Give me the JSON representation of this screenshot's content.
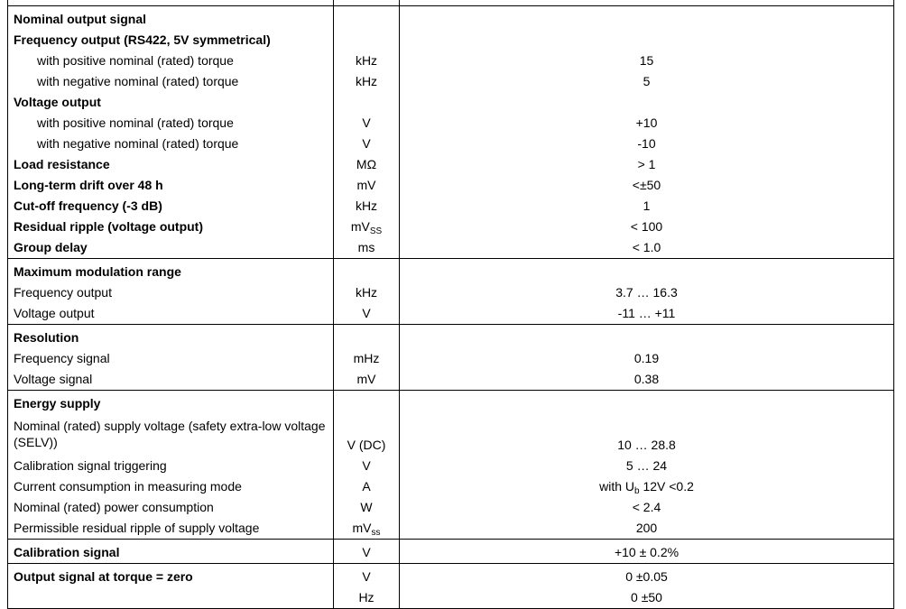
{
  "sections": [
    {
      "rows": [
        {
          "label": "Nominal output signal",
          "style": "bold",
          "unit": "",
          "value": ""
        },
        {
          "label": "Frequency output (RS422, 5V symmetrical)",
          "style": "bold",
          "unit": "",
          "value": ""
        },
        {
          "label": "with positive nominal (rated) torque",
          "style": "indent",
          "unit": "kHz",
          "value": "15"
        },
        {
          "label": "with negative nominal (rated) torque",
          "style": "indent",
          "unit": "kHz",
          "value": "5"
        },
        {
          "label": "Voltage output",
          "style": "bold",
          "unit": "",
          "value": ""
        },
        {
          "label": "with positive nominal (rated) torque",
          "style": "indent",
          "unit": "V",
          "value": "+10"
        },
        {
          "label": "with negative nominal (rated) torque",
          "style": "indent",
          "unit": "V",
          "value": "-10"
        },
        {
          "label": "Load resistance",
          "style": "bold",
          "unit": "MΩ",
          "value": "> 1"
        },
        {
          "label": "Long-term drift over 48 h",
          "style": "bold",
          "unit": "mV",
          "value": "<±50"
        },
        {
          "label": "Cut-off frequency (-3 dB)",
          "style": "bold",
          "unit": "kHz",
          "value": "1"
        },
        {
          "label": "Residual ripple (voltage output)",
          "style": "bold",
          "unit": "mV",
          "unit_sub": "SS",
          "value": "< 100"
        },
        {
          "label": "Group delay",
          "style": "bold",
          "unit": "ms",
          "value": "< 1.0"
        }
      ]
    },
    {
      "rows": [
        {
          "label": "Maximum modulation range",
          "style": "bold",
          "unit": "",
          "value": ""
        },
        {
          "label": "Frequency output",
          "style": "",
          "unit": "kHz",
          "value": "3.7 … 16.3"
        },
        {
          "label": "Voltage output",
          "style": "",
          "unit": "V",
          "value": "-11 … +11"
        }
      ]
    },
    {
      "rows": [
        {
          "label": "Resolution",
          "style": "bold",
          "unit": "",
          "value": ""
        },
        {
          "label": "Frequency signal",
          "style": "",
          "unit": "mHz",
          "value": "0.19"
        },
        {
          "label": "Voltage signal",
          "style": "",
          "unit": "mV",
          "value": "0.38"
        }
      ]
    },
    {
      "rows": [
        {
          "label": "Energy supply",
          "style": "bold",
          "unit": "",
          "value": ""
        },
        {
          "label": "Nominal (rated) supply voltage (safety extra-low voltage (SELV))",
          "style": "two",
          "unit": "V (DC)",
          "value": "10 … 28.8"
        },
        {
          "label": "Calibration signal triggering",
          "style": "",
          "unit": "V",
          "value": "5 … 24"
        },
        {
          "label": "Current consumption in measuring mode",
          "style": "",
          "unit": "A",
          "value": "with U",
          "value_sub": "b",
          "value_after": " 12V <0.2"
        },
        {
          "label": "Nominal (rated) power consumption",
          "style": "",
          "unit": "W",
          "value": "< 2.4"
        },
        {
          "label": "Permissible residual ripple of supply voltage",
          "style": "",
          "unit": "mV",
          "unit_sub": "ss",
          "value": "200"
        }
      ]
    },
    {
      "rows": [
        {
          "label": "Calibration signal",
          "style": "bold",
          "unit": "V",
          "value": "+10 ± 0.2%"
        }
      ]
    },
    {
      "rows": [
        {
          "label": "Output signal at torque = zero",
          "style": "bold",
          "unit": "V",
          "value": "0 ±0.05"
        },
        {
          "label": "",
          "style": "",
          "unit": "Hz",
          "value": "0 ±50"
        }
      ]
    }
  ]
}
